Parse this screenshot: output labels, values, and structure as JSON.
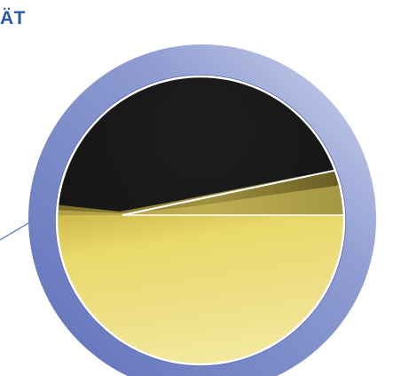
{
  "heading": {
    "text": "ÄT"
  },
  "colors": {
    "heading": "#2a56a8",
    "ring_outer": "#c4cde8",
    "ring_inner": "#6a7cc0",
    "ring_edge": "#5868b2",
    "dark_region": "#161716",
    "gold_region": "#e6d35a",
    "gold_highlight": "#f4ea9e",
    "leader_line": "#5a78c0",
    "interface_line": "#ffffff"
  },
  "figure": {
    "description_icon": "magnified-circle-inset"
  }
}
